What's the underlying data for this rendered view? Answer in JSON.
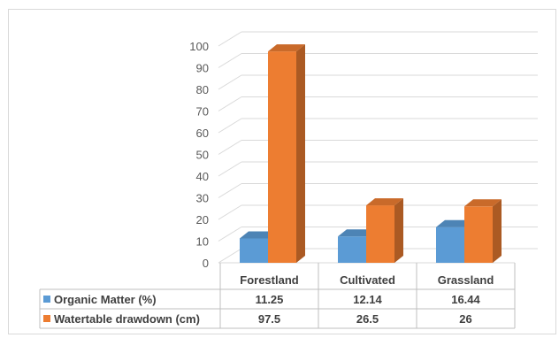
{
  "chart_data": {
    "type": "bar",
    "style": "3d-clustered-column-with-data-table",
    "categories": [
      "Forestland",
      "Cultivated",
      "Grassland"
    ],
    "series": [
      {
        "name": "Organic Matter (%)",
        "values": [
          11.25,
          12.14,
          16.44
        ],
        "color": "#5b9bd5"
      },
      {
        "name": "Watertable drawdown (cm)",
        "values": [
          97.5,
          26.5,
          26
        ],
        "color": "#ed7d31"
      }
    ],
    "table_values": [
      [
        "11.25",
        "12.14",
        "16.44"
      ],
      [
        "97.5",
        "26.5",
        "26"
      ]
    ],
    "ylim": [
      0,
      100
    ],
    "yticks": [
      "0",
      "10",
      "20",
      "30",
      "40",
      "50",
      "60",
      "70",
      "80",
      "90",
      "100"
    ],
    "grid": true,
    "legend": "data-table",
    "title": "",
    "xlabel": "",
    "ylabel": ""
  }
}
